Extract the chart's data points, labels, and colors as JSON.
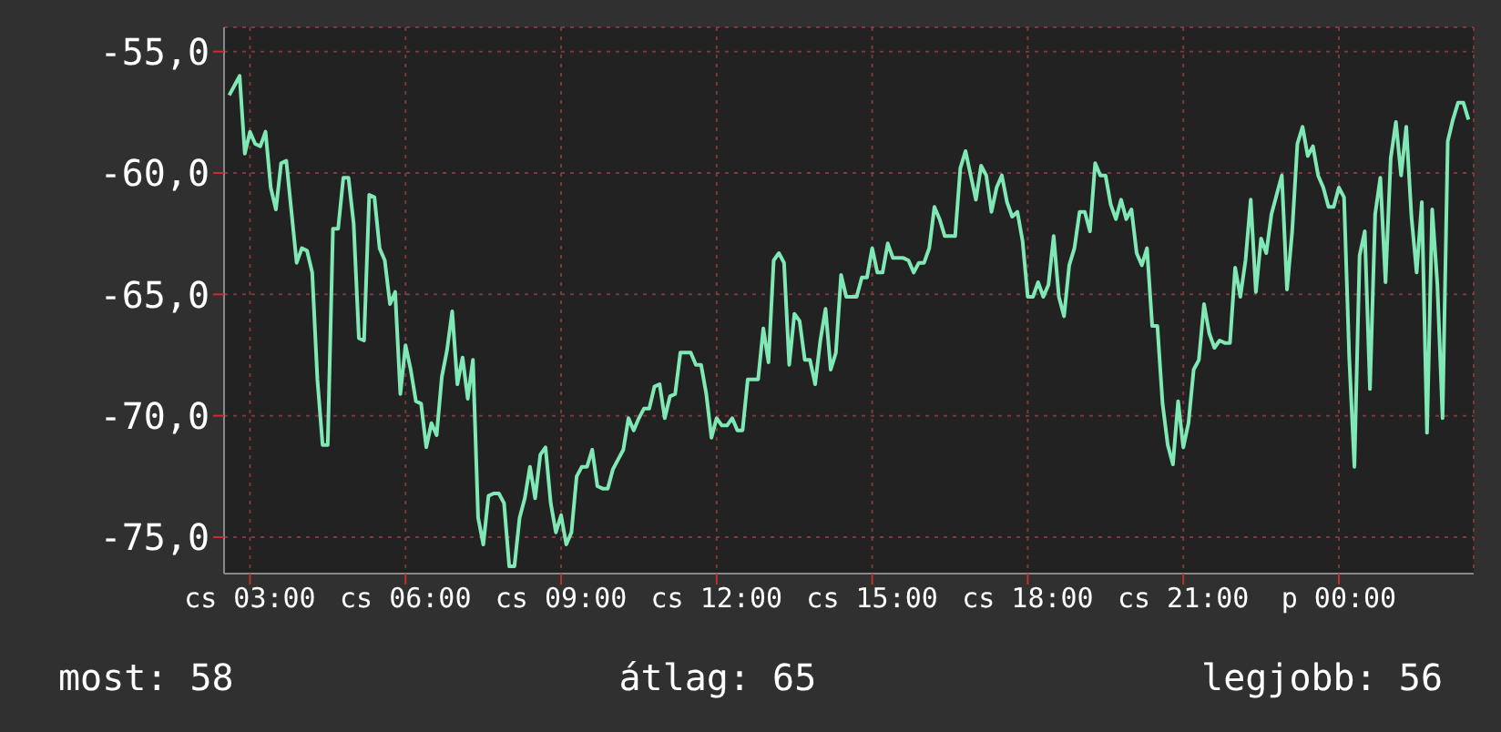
{
  "chart_data": {
    "type": "line",
    "color": "#7fe8b4",
    "grid": true,
    "ylim": [
      -76.5,
      -54
    ],
    "yticks": [
      {
        "value": -55,
        "label": "-55,0"
      },
      {
        "value": -60,
        "label": "-60,0"
      },
      {
        "value": -65,
        "label": "-65,0"
      },
      {
        "value": -70,
        "label": "-70,0"
      },
      {
        "value": -75,
        "label": "-75,0"
      }
    ],
    "annotations": [
      "most: 58",
      "átlag: 65",
      "legjobb: 56"
    ],
    "categories": [
      null,
      null,
      null,
      null,
      "cs 03:00",
      null,
      null,
      null,
      null,
      null,
      null,
      null,
      null,
      null,
      null,
      null,
      null,
      null,
      null,
      null,
      null,
      null,
      null,
      null,
      null,
      null,
      null,
      null,
      null,
      null,
      null,
      null,
      null,
      null,
      "cs 06:00",
      null,
      null,
      null,
      null,
      null,
      null,
      null,
      null,
      null,
      null,
      null,
      null,
      null,
      null,
      null,
      null,
      null,
      null,
      null,
      null,
      null,
      null,
      null,
      null,
      null,
      null,
      null,
      null,
      null,
      "cs 09:00",
      null,
      null,
      null,
      null,
      null,
      null,
      null,
      null,
      null,
      null,
      null,
      null,
      null,
      null,
      null,
      null,
      null,
      null,
      null,
      null,
      null,
      null,
      null,
      null,
      null,
      null,
      null,
      null,
      null,
      "cs 12:00",
      null,
      null,
      null,
      null,
      null,
      null,
      null,
      null,
      null,
      null,
      null,
      null,
      null,
      null,
      null,
      null,
      null,
      null,
      null,
      null,
      null,
      null,
      null,
      null,
      null,
      null,
      null,
      null,
      null,
      "cs 15:00",
      null,
      null,
      null,
      null,
      null,
      null,
      null,
      null,
      null,
      null,
      null,
      null,
      null,
      null,
      null,
      null,
      null,
      null,
      null,
      null,
      null,
      null,
      null,
      null,
      null,
      null,
      null,
      null,
      null,
      "cs 18:00",
      null,
      null,
      null,
      null,
      null,
      null,
      null,
      null,
      null,
      null,
      null,
      null,
      null,
      null,
      null,
      null,
      null,
      null,
      null,
      null,
      null,
      null,
      null,
      null,
      null,
      null,
      null,
      null,
      null,
      "cs 21:00",
      null,
      null,
      null,
      null,
      null,
      null,
      null,
      null,
      null,
      null,
      null,
      null,
      null,
      null,
      null,
      null,
      null,
      null,
      null,
      null,
      null,
      null,
      null,
      null,
      null,
      null,
      null,
      null,
      null,
      "p 00:00",
      null,
      null,
      null,
      null,
      null,
      null,
      null,
      null,
      null,
      null,
      null,
      null,
      null,
      null,
      null,
      null,
      null,
      null,
      null,
      null,
      null,
      null,
      null,
      null,
      null
    ],
    "values": [
      -56.8,
      -56.4,
      -56.0,
      -59.2,
      -58.3,
      -58.8,
      -58.9,
      -58.3,
      -60.6,
      -61.5,
      -59.6,
      -59.5,
      -61.6,
      -63.7,
      -63.1,
      -63.2,
      -64.1,
      -68.5,
      -71.2,
      -71.2,
      -62.3,
      -62.3,
      -60.2,
      -60.2,
      -62.1,
      -66.8,
      -66.9,
      -60.9,
      -61.0,
      -63.1,
      -63.6,
      -65.4,
      -64.9,
      -69.1,
      -67.1,
      -68.1,
      -69.4,
      -69.5,
      -71.3,
      -70.3,
      -70.8,
      -68.4,
      -67.3,
      -65.7,
      -68.7,
      -67.6,
      -69.3,
      -67.7,
      -74.2,
      -75.3,
      -73.3,
      -73.2,
      -73.2,
      -73.6,
      -76.2,
      -76.2,
      -74.2,
      -73.4,
      -72.1,
      -73.4,
      -71.6,
      -71.3,
      -73.6,
      -74.8,
      -74.1,
      -75.3,
      -74.8,
      -72.5,
      -72.1,
      -72.1,
      -71.4,
      -72.9,
      -73.0,
      -73.0,
      -72.2,
      -71.8,
      -71.4,
      -70.1,
      -70.6,
      -70.1,
      -69.7,
      -69.7,
      -68.8,
      -68.7,
      -70.1,
      -69.2,
      -69.1,
      -67.4,
      -67.4,
      -67.4,
      -67.9,
      -67.9,
      -69.1,
      -70.9,
      -70.1,
      -70.4,
      -70.4,
      -70.1,
      -70.6,
      -70.6,
      -68.5,
      -68.5,
      -68.5,
      -66.4,
      -67.8,
      -63.6,
      -63.3,
      -63.7,
      -67.9,
      -65.8,
      -66.1,
      -67.7,
      -67.7,
      -68.7,
      -66.9,
      -65.6,
      -68.1,
      -67.4,
      -64.2,
      -65.1,
      -65.1,
      -65.1,
      -64.3,
      -64.3,
      -63.1,
      -64.1,
      -64.1,
      -62.9,
      -63.5,
      -63.5,
      -63.5,
      -63.6,
      -64.1,
      -63.7,
      -63.7,
      -63.1,
      -61.4,
      -61.9,
      -62.6,
      -62.6,
      -62.6,
      -59.8,
      -59.1,
      -60.1,
      -61.1,
      -59.7,
      -60.1,
      -61.6,
      -60.6,
      -60.1,
      -61.2,
      -61.8,
      -61.6,
      -62.8,
      -65.1,
      -65.1,
      -64.5,
      -65.1,
      -64.6,
      -62.6,
      -65.1,
      -65.9,
      -63.8,
      -63.1,
      -61.6,
      -61.6,
      -62.4,
      -59.6,
      -60.1,
      -60.1,
      -61.3,
      -61.9,
      -61.1,
      -61.9,
      -61.5,
      -63.3,
      -63.8,
      -63.1,
      -66.3,
      -66.3,
      -69.5,
      -71.2,
      -72.0,
      -69.4,
      -71.3,
      -70.3,
      -68.1,
      -67.7,
      -65.4,
      -66.6,
      -67.2,
      -66.9,
      -67.0,
      -67.0,
      -63.9,
      -65.1,
      -63.6,
      -61.1,
      -64.9,
      -62.7,
      -63.3,
      -61.7,
      -60.9,
      -60.1,
      -64.8,
      -62.4,
      -58.8,
      -58.1,
      -59.3,
      -58.9,
      -60.1,
      -60.6,
      -61.4,
      -61.4,
      -60.6,
      -61.0,
      -67.6,
      -72.1,
      -63.4,
      -62.4,
      -68.9,
      -61.7,
      -60.2,
      -64.5,
      -59.4,
      -57.9,
      -60.1,
      -58.1,
      -61.8,
      -64.1,
      -61.2,
      -70.7,
      -61.5,
      -64.6,
      -70.1,
      -58.7,
      -57.8,
      -57.1,
      -57.1,
      -57.8
    ]
  }
}
